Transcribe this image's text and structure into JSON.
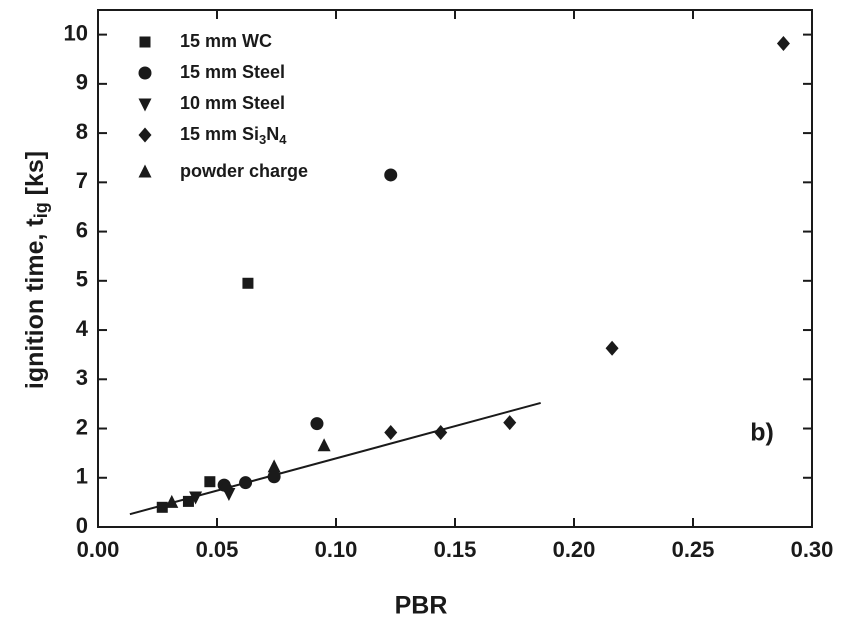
{
  "chart_data": {
    "type": "scatter",
    "xlabel": "PBR",
    "ylabel": [
      "ignition time, t",
      "ig",
      " [ks]"
    ],
    "annotation": "b)",
    "xlim": [
      0,
      0.3
    ],
    "ylim": [
      0,
      10.5
    ],
    "xticks": [
      {
        "value": 0,
        "label": "0.00"
      },
      {
        "value": 0.05,
        "label": "0.05"
      },
      {
        "value": 0.1,
        "label": "0.10"
      },
      {
        "value": 0.15,
        "label": "0.15"
      },
      {
        "value": 0.2,
        "label": "0.20"
      },
      {
        "value": 0.25,
        "label": "0.25"
      },
      {
        "value": 0.3,
        "label": "0.30"
      }
    ],
    "yticks": [
      0,
      1,
      2,
      3,
      4,
      5,
      6,
      7,
      8,
      9,
      10
    ],
    "color": "#1a1a1a",
    "series": [
      {
        "name": "15 mm WC",
        "marker": "square",
        "x": [
          0.027,
          0.038,
          0.047,
          0.063
        ],
        "values": [
          0.4,
          0.52,
          0.92,
          4.95
        ]
      },
      {
        "name": "15 mm Steel",
        "marker": "circle",
        "x": [
          0.053,
          0.062,
          0.074,
          0.092,
          0.123
        ],
        "values": [
          0.85,
          0.9,
          1.02,
          2.1,
          7.15
        ]
      },
      {
        "name": "10 mm Steel",
        "marker": "triangle-down",
        "x": [
          0.041,
          0.055
        ],
        "values": [
          0.61,
          0.68
        ]
      },
      {
        "name": "15 mm Si3N4",
        "marker": "diamond",
        "x": [
          0.054,
          0.123,
          0.144,
          0.173,
          0.216,
          0.288
        ],
        "values": [
          0.81,
          1.92,
          1.92,
          2.12,
          3.63,
          9.82
        ]
      },
      {
        "name": "powder charge",
        "marker": "triangle-up",
        "x": [
          0.031,
          0.074,
          0.095
        ],
        "values": [
          0.5,
          1.22,
          1.65
        ]
      }
    ],
    "fit_line": {
      "x": [
        0.0134,
        0.186
      ],
      "values": [
        0.26,
        2.52
      ]
    }
  }
}
